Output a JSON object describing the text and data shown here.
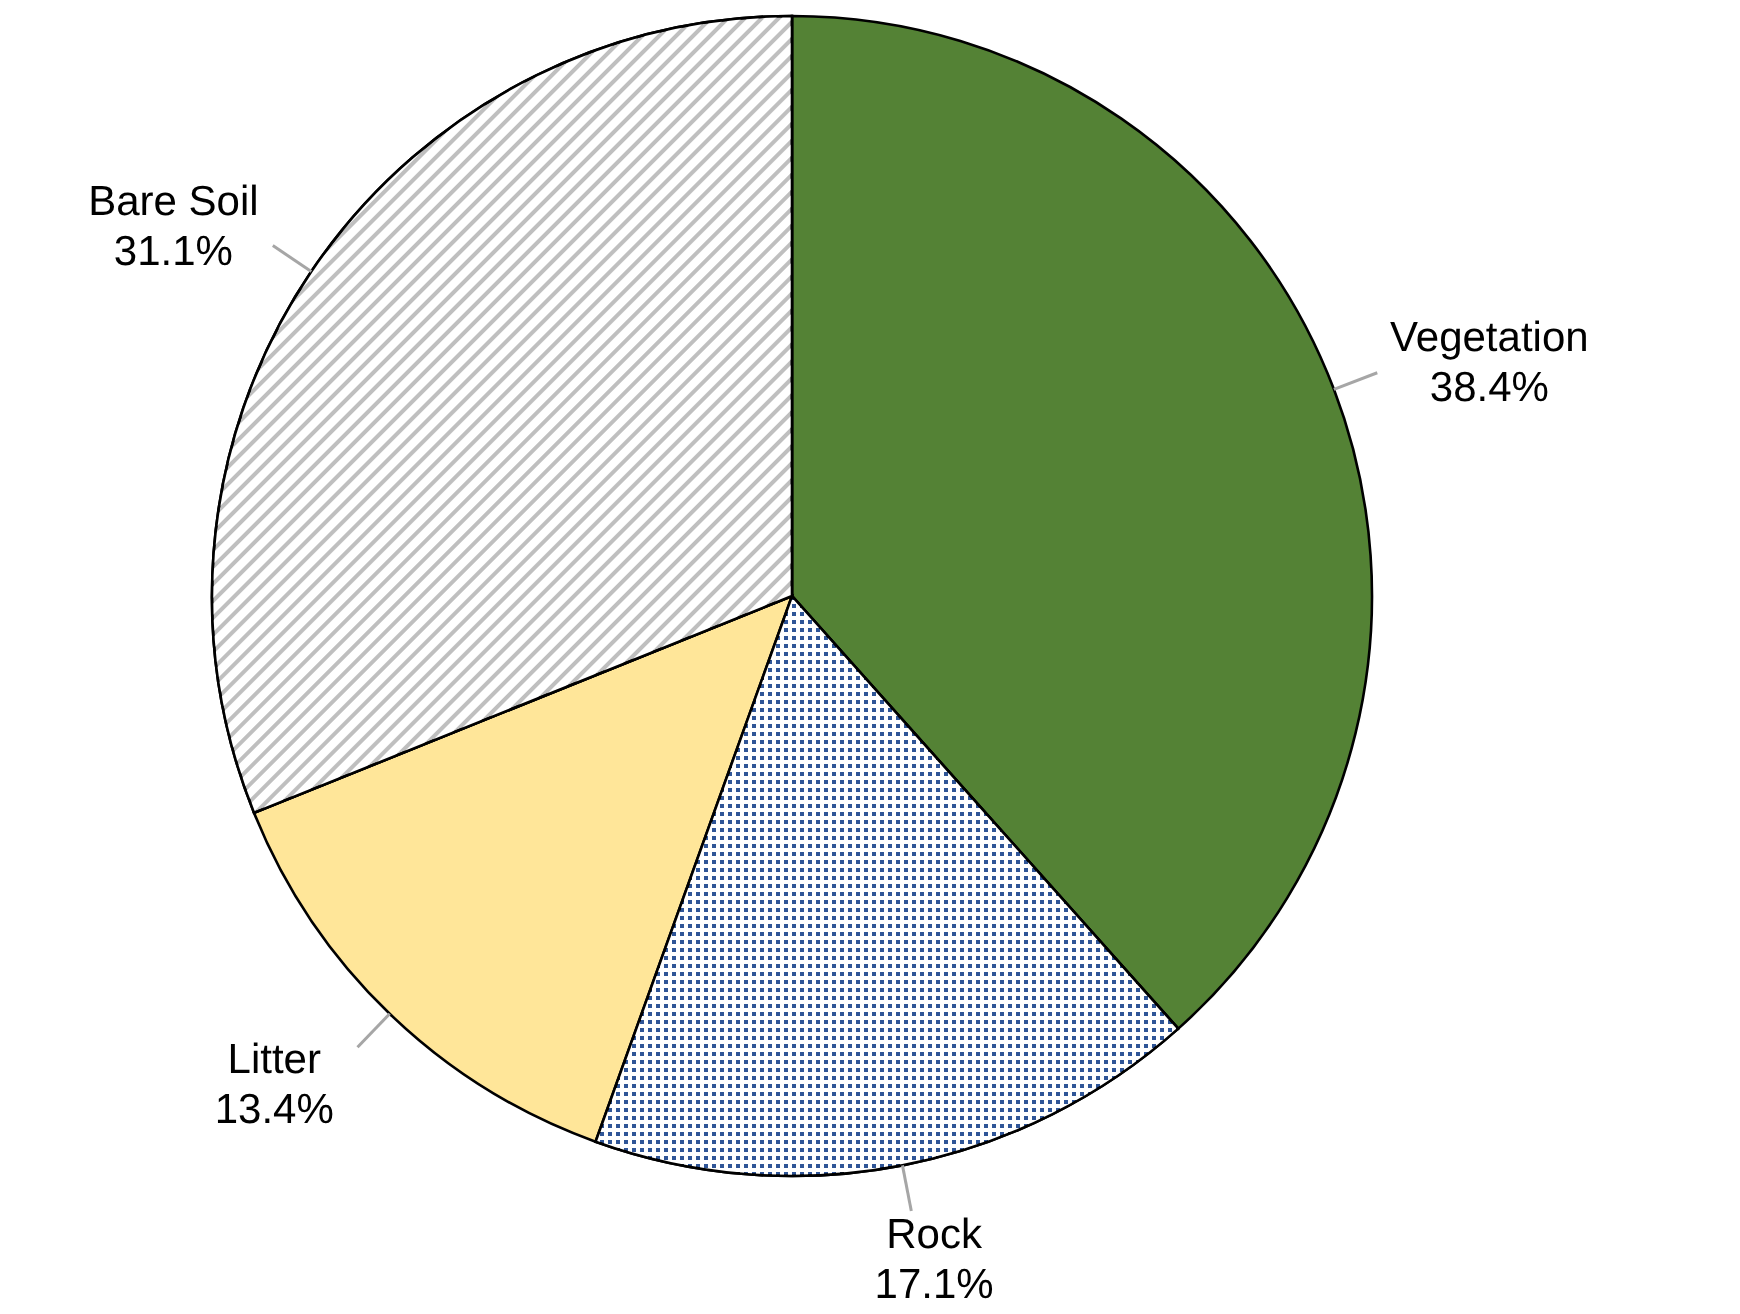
{
  "chart_data": {
    "type": "pie",
    "categories": [
      "Vegetation",
      "Rock",
      "Litter",
      "Bare Soil"
    ],
    "values": [
      38.4,
      17.1,
      13.4,
      31.1
    ],
    "colors": [
      "#548235",
      "#2f5597",
      "#ffe699",
      "#bfbfbf"
    ],
    "value_labels": [
      "38.4%",
      "17.1%",
      "13.4%",
      "31.1%"
    ]
  }
}
